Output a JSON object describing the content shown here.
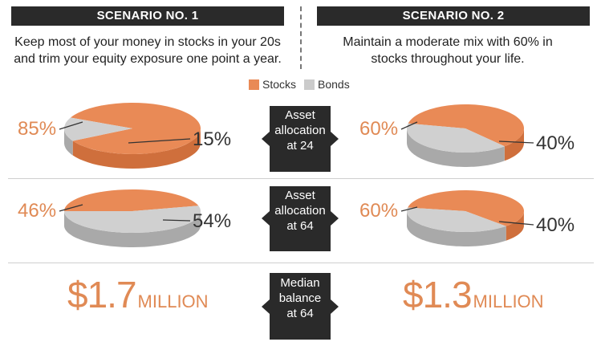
{
  "scenario1": {
    "title": "SCENARIO NO. 1",
    "description_line1": "Keep most of your money in stocks in your 20s",
    "description_line2": "and trim your equity exposure one point a year."
  },
  "scenario2": {
    "title": "SCENARIO NO. 2",
    "description_line1": "Maintain a moderate mix with 60% in",
    "description_line2": "stocks throughout your life."
  },
  "legend": [
    {
      "label": "Stocks",
      "color": "#e98a56"
    },
    {
      "label": "Bonds",
      "color": "#cbcbcb"
    }
  ],
  "rows": [
    {
      "label_lines": [
        "Asset",
        "allocation",
        "at 24"
      ]
    },
    {
      "label_lines": [
        "Asset",
        "allocation",
        "at 64"
      ]
    },
    {
      "label_lines": [
        "Median",
        "balance",
        "at 64"
      ]
    }
  ],
  "balances": {
    "scenario1": {
      "amount": "$1.7",
      "unit": "MILLION"
    },
    "scenario2": {
      "amount": "$1.3",
      "unit": "MILLION"
    }
  },
  "chart_data": [
    {
      "type": "pie",
      "categories": [
        "Stocks",
        "Bonds"
      ],
      "values": [
        85,
        15
      ],
      "labels": [
        "85%",
        "15%"
      ]
    },
    {
      "type": "pie",
      "categories": [
        "Stocks",
        "Bonds"
      ],
      "values": [
        60,
        40
      ],
      "labels": [
        "60%",
        "40%"
      ]
    },
    {
      "type": "pie",
      "categories": [
        "Stocks",
        "Bonds"
      ],
      "values": [
        46,
        54
      ],
      "labels": [
        "46%",
        "54%"
      ]
    },
    {
      "type": "pie",
      "categories": [
        "Stocks",
        "Bonds"
      ],
      "values": [
        60,
        40
      ],
      "labels": [
        "60%",
        "40%"
      ]
    }
  ]
}
